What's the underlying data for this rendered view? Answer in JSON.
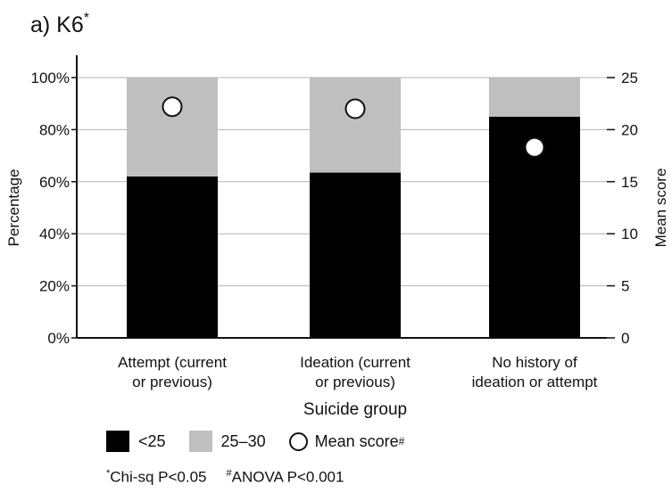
{
  "panel_title": "a) K6",
  "panel_title_sup": "*",
  "chart_data": {
    "type": "bar",
    "stacked": true,
    "categories": [
      [
        "Attempt (current",
        "or previous)"
      ],
      [
        "Ideation (current",
        "or previous)"
      ],
      [
        "No history of",
        "ideation or attempt"
      ]
    ],
    "series": [
      {
        "name": "<25",
        "color": "#000000",
        "values": [
          62,
          63.5,
          85
        ]
      },
      {
        "name": "25–30",
        "color": "#bfbfbf",
        "values": [
          38,
          36.5,
          15
        ]
      }
    ],
    "mean_score": {
      "name": "Mean score",
      "values": [
        22.2,
        22.0,
        18.3
      ],
      "axis": "right"
    },
    "xlabel": "Suicide group",
    "ylabel": "Percentage",
    "ylabel_right": "Mean score",
    "ylim": [
      0,
      100
    ],
    "yticks": [
      "0%",
      "20%",
      "40%",
      "60%",
      "80%",
      "100%"
    ],
    "ylim_right": [
      0,
      25
    ],
    "yticks_right": [
      "0",
      "5",
      "10",
      "15",
      "20",
      "25"
    ],
    "grid": true,
    "legend_position": "bottom-left"
  },
  "legend": {
    "items": [
      {
        "label": "<25",
        "color": "#000000"
      },
      {
        "label": "25–30",
        "color": "#bfbfbf"
      },
      {
        "label": "Mean score",
        "sup": "#"
      }
    ]
  },
  "footnote": {
    "chi_sup": "*",
    "chi_text": "Chi-sq P<0.05",
    "anova_sup": "#",
    "anova_text": "ANOVA P<0.001"
  }
}
